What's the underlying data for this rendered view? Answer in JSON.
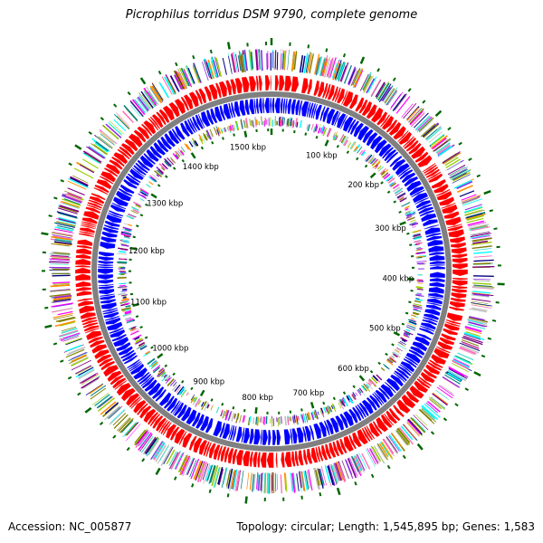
{
  "title": "Picrophilus torridus DSM 9790, complete genome",
  "accession": "Accession: NC_005877",
  "summary": "Topology: circular; Length: 1,545,895 bp; Genes: 1,583",
  "genome": {
    "length_bp": 1545895,
    "gene_count": 1583,
    "topology": "circular"
  },
  "tick_labels": [
    {
      "bp": 100000,
      "text": "100 kbp"
    },
    {
      "bp": 200000,
      "text": "200 kbp"
    },
    {
      "bp": 300000,
      "text": "300 kbp"
    },
    {
      "bp": 400000,
      "text": "400 kbp"
    },
    {
      "bp": 500000,
      "text": "500 kbp"
    },
    {
      "bp": 600000,
      "text": "600 kbp"
    },
    {
      "bp": 700000,
      "text": "700 kbp"
    },
    {
      "bp": 800000,
      "text": "800 kbp"
    },
    {
      "bp": 900000,
      "text": "900 kbp"
    },
    {
      "bp": 1000000,
      "text": "1000 kbp"
    },
    {
      "bp": 1100000,
      "text": "1100 kbp"
    },
    {
      "bp": 1200000,
      "text": "1200 kbp"
    },
    {
      "bp": 1300000,
      "text": "1300 kbp"
    },
    {
      "bp": 1400000,
      "text": "1400 kbp"
    },
    {
      "bp": 1500000,
      "text": "1500 kbp"
    }
  ],
  "colors": {
    "forward_strand": "#ff0000",
    "reverse_strand": "#0000ff",
    "backbone": "#808080",
    "tick": "#006600",
    "cog_palette": [
      "#00ffff",
      "#ff00ff",
      "#800080",
      "#808000",
      "#008080",
      "#ff8c00",
      "#000080",
      "#99cc00",
      "#ff69b4",
      "#40e0d0",
      "#8a2be2",
      "#c0c0c0"
    ]
  }
}
